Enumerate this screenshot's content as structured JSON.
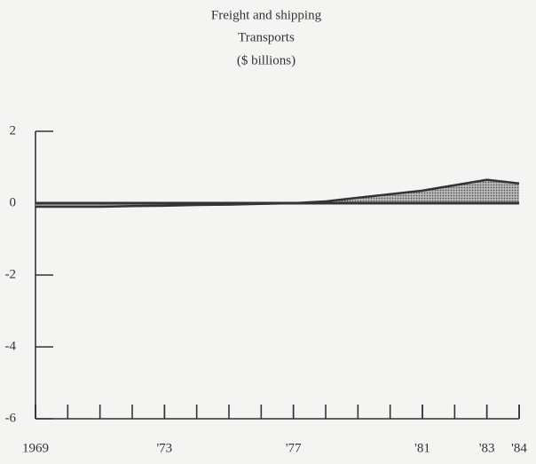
{
  "chart_data": {
    "type": "area",
    "title": [
      "Freight and shipping",
      "Transports",
      "($ billions)"
    ],
    "x": [
      1969,
      1970,
      1971,
      1972,
      1973,
      1974,
      1975,
      1976,
      1977,
      1978,
      1979,
      1980,
      1981,
      1982,
      1983,
      1984
    ],
    "values": [
      -0.1,
      -0.1,
      -0.1,
      -0.08,
      -0.07,
      -0.05,
      -0.04,
      -0.02,
      0,
      0.05,
      0.15,
      0.25,
      0.35,
      0.5,
      0.65,
      0.55
    ],
    "color": "#333333",
    "xlim": [
      1969,
      1984
    ],
    "xticks": [
      {
        "value": 1969,
        "label": "1969"
      },
      {
        "value": 1973,
        "label": "'73"
      },
      {
        "value": 1977,
        "label": "'77"
      },
      {
        "value": 1981,
        "label": "'81"
      },
      {
        "value": 1983,
        "label": "'83"
      },
      {
        "value": 1984,
        "label": "'84"
      }
    ],
    "ylim": [
      -6,
      2
    ],
    "yticks": [
      -6,
      -4,
      -2,
      0,
      2
    ]
  }
}
